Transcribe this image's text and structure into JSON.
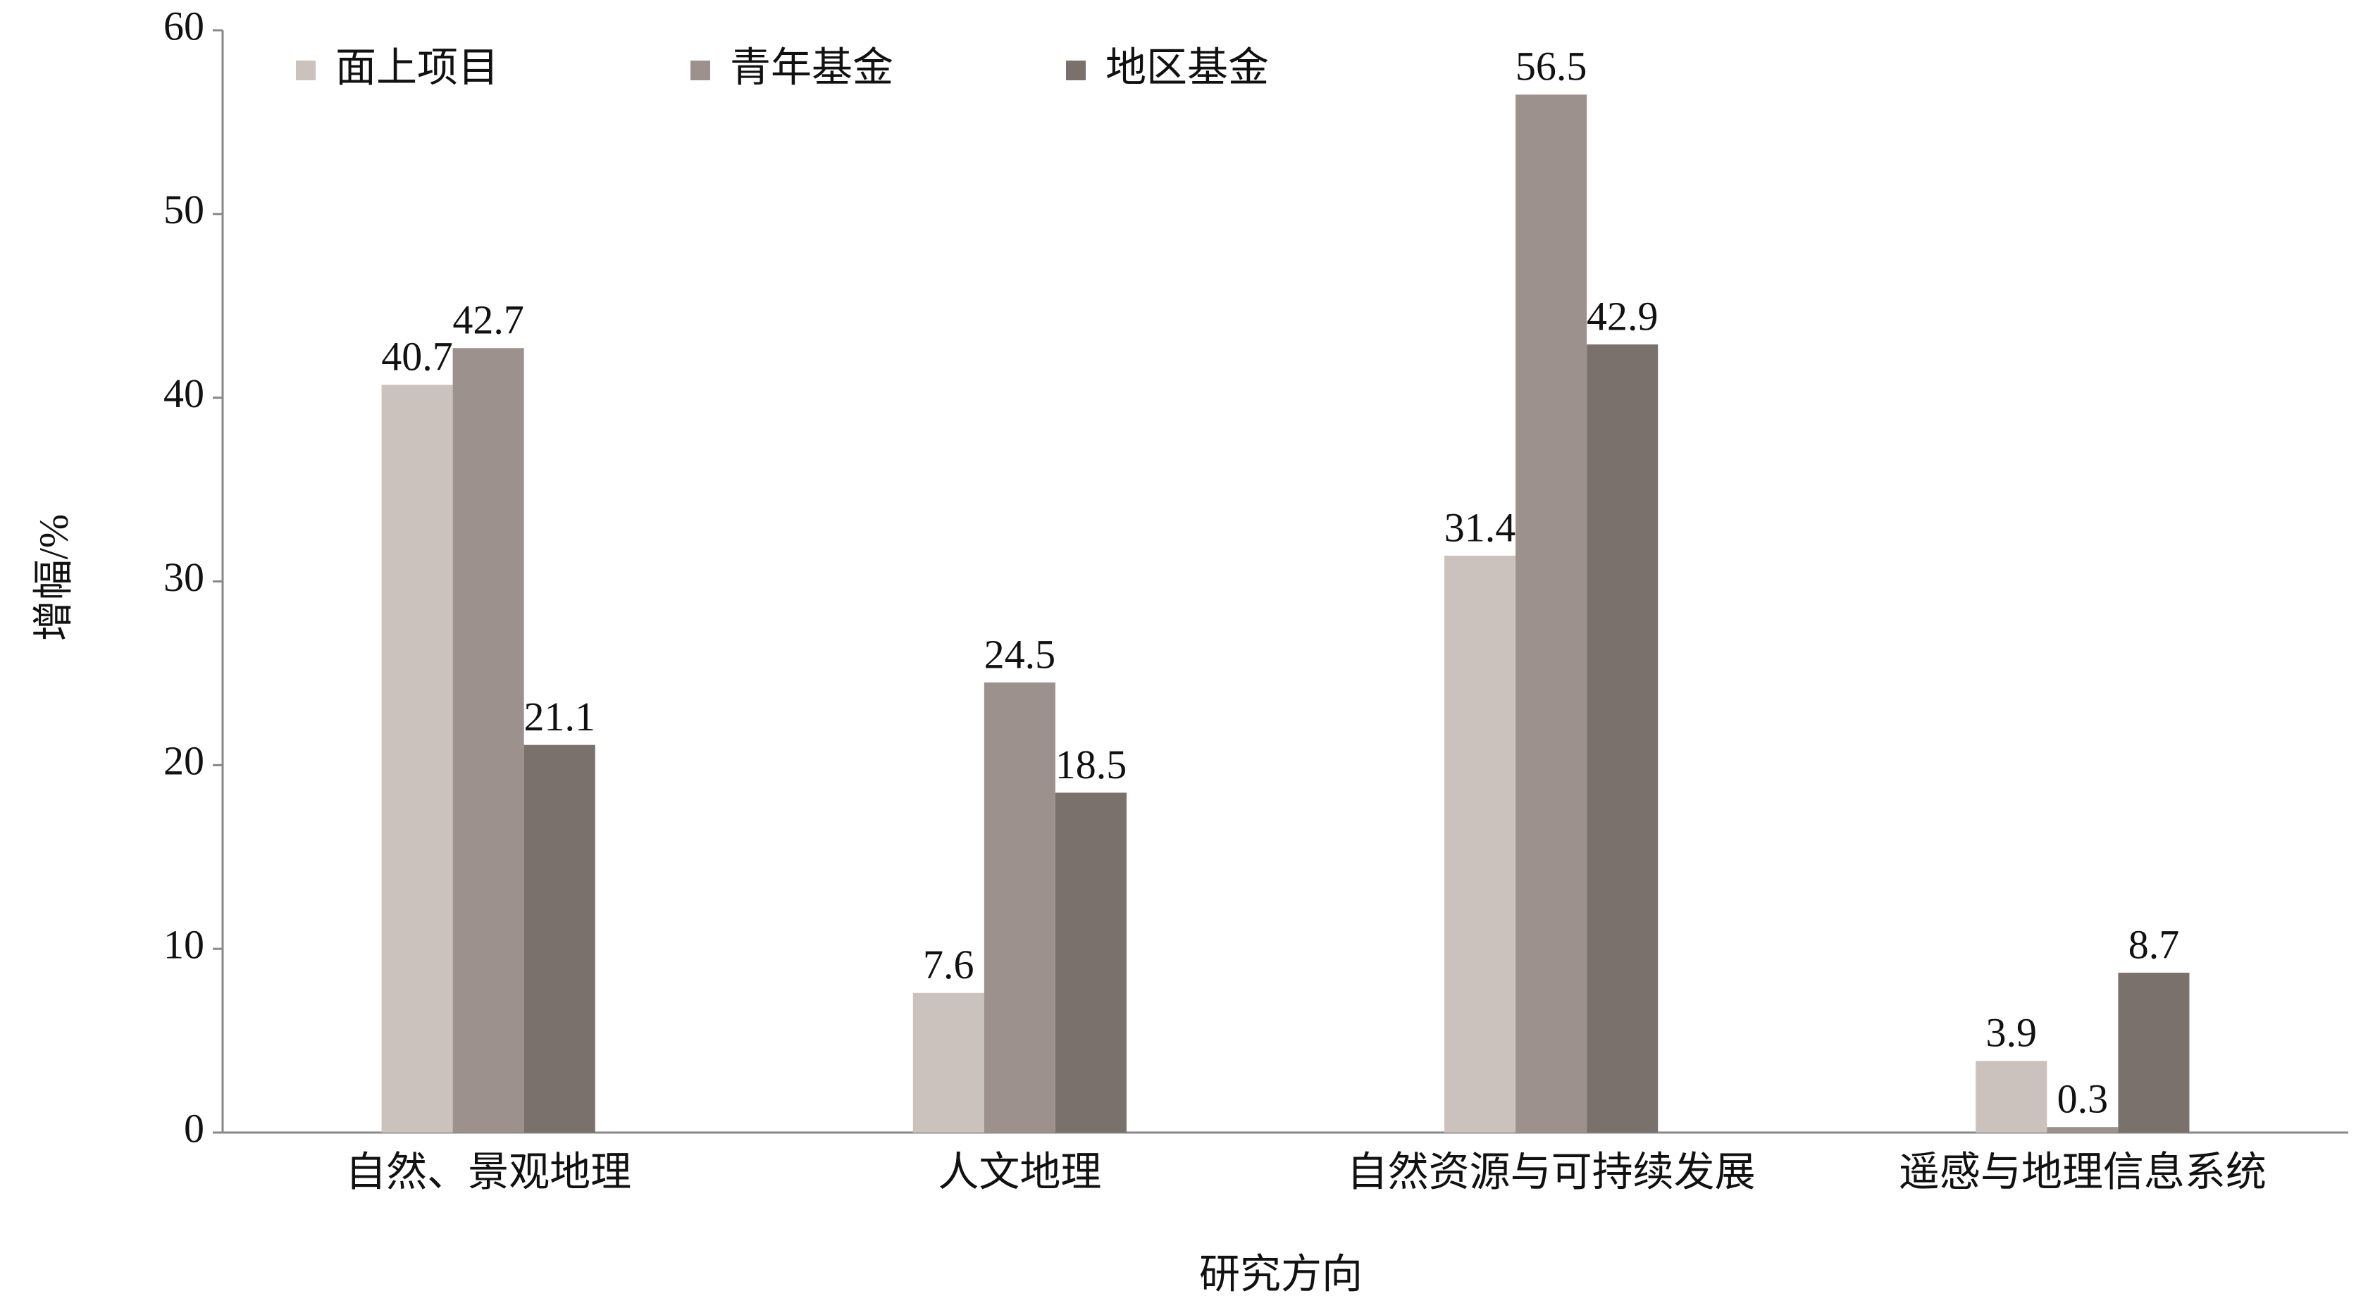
{
  "chart_data": {
    "type": "bar",
    "x_label": "研究方向",
    "y_label": "增幅/%",
    "categories": [
      "自然、景观地理",
      "人文地理",
      "自然资源与可持续发展",
      "遥感与地理信息系统"
    ],
    "series": [
      {
        "name": "面上项目",
        "color": "#cbc2be",
        "values": [
          40.7,
          7.6,
          31.4,
          3.9
        ]
      },
      {
        "name": "青年基金",
        "color": "#9d918d",
        "values": [
          42.7,
          24.5,
          56.5,
          0.3
        ]
      },
      {
        "name": "地区基金",
        "color": "#7b716c",
        "values": [
          21.1,
          18.5,
          42.9,
          8.7
        ]
      }
    ],
    "ylim": [
      0,
      60
    ],
    "yticks": [
      0,
      10,
      20,
      30,
      40,
      50,
      60
    ],
    "grid": false,
    "legend": "top-left"
  }
}
